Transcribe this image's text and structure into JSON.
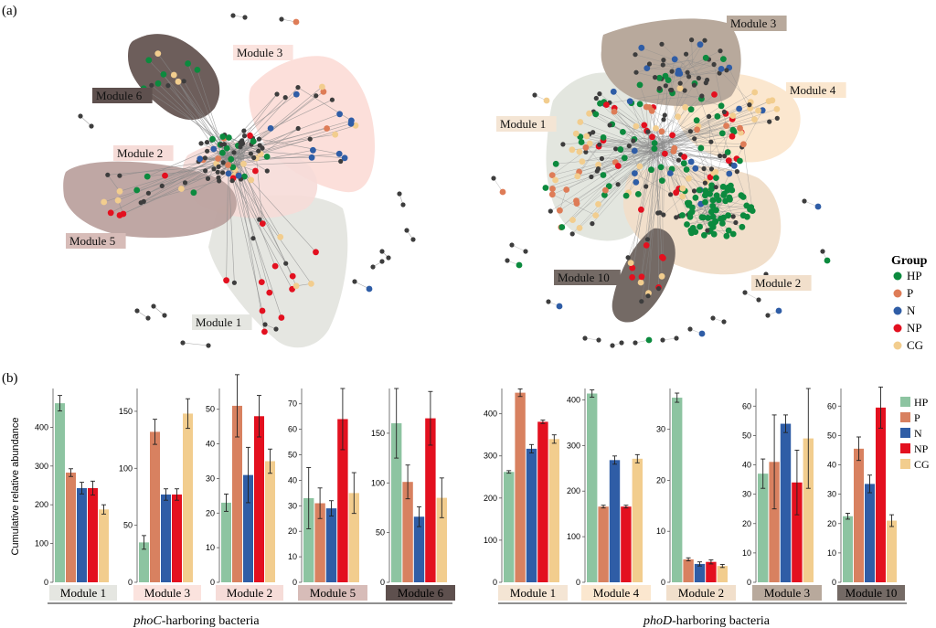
{
  "figure": {
    "panel_a_label": "(a)",
    "panel_b_label": "(b)"
  },
  "colors": {
    "HP": "#0c8a3e",
    "P": "#de7c57",
    "N": "#2f5da6",
    "NP": "#e3101f",
    "CG": "#f2cd8e",
    "gray": "#3d3d3d",
    "bar_HP": "#8dc4a1",
    "bar_P": "#d88160",
    "bar_N": "#2f5da6",
    "bar_NP": "#e3101f",
    "bar_CG": "#f2cd8e"
  },
  "network_left": {
    "modules": [
      {
        "label": "Module 1",
        "fill": "#e5e6e1",
        "label_bg": "#e5e6e1",
        "label_color": "#111111"
      },
      {
        "label": "Module 2",
        "fill": "#f6dcd8",
        "label_bg": "#f6dcd8",
        "label_color": "#111111"
      },
      {
        "label": "Module 3",
        "fill": "#fbd9d3",
        "label_bg": "#fbe3de",
        "label_color": "#111111"
      },
      {
        "label": "Module 5",
        "fill": "#bca29f",
        "label_bg": "#d7bcb8",
        "label_color": "#111111"
      },
      {
        "label": "Module 6",
        "fill": "#6d5e5b",
        "label_bg": "#5e504e",
        "label_color": "#111111"
      }
    ]
  },
  "network_right": {
    "modules": [
      {
        "label": "Module 1",
        "fill": "#e3e6df",
        "label_bg": "#f4e5d4",
        "label_color": "#111111"
      },
      {
        "label": "Module 2",
        "fill": "#f1dfcb",
        "label_bg": "#f1dfcb",
        "label_color": "#111111"
      },
      {
        "label": "Module 3",
        "fill": "#b8a99c",
        "label_bg": "#b8a99c",
        "label_color": "#111111"
      },
      {
        "label": "Module 4",
        "fill": "#fbe7cf",
        "label_bg": "#fbe7cf",
        "label_color": "#111111"
      },
      {
        "label": "Module 10",
        "fill": "#746a65",
        "label_bg": "#746a65",
        "label_color": "#111111"
      }
    ]
  },
  "legend_a": {
    "title": "Group",
    "items": [
      "HP",
      "P",
      "N",
      "NP",
      "CG"
    ]
  },
  "legend_b": {
    "items": [
      "HP",
      "P",
      "N",
      "NP",
      "CG"
    ]
  },
  "chart_data": [
    {
      "type": "bar",
      "group": "phoC-harboring bacteria",
      "module": "Module 1",
      "module_bg": "#e5e6e1",
      "ylabel": "Cumulative relative abundance",
      "ylim": [
        0,
        500
      ],
      "yticks": [
        0,
        100,
        200,
        300,
        400
      ],
      "categories": [
        "HP",
        "P",
        "N",
        "NP",
        "CG"
      ],
      "values": [
        462,
        283,
        243,
        243,
        188
      ],
      "errors": [
        20,
        10,
        15,
        18,
        12
      ]
    },
    {
      "type": "bar",
      "group": "phoC-harboring bacteria",
      "module": "Module 3",
      "module_bg": "#fbe3de",
      "ylim": [
        0,
        170
      ],
      "yticks": [
        0,
        50,
        100,
        150
      ],
      "categories": [
        "HP",
        "P",
        "N",
        "NP",
        "CG"
      ],
      "values": [
        35,
        132,
        77,
        77,
        148
      ],
      "errors": [
        6,
        11,
        5,
        5,
        13
      ]
    },
    {
      "type": "bar",
      "group": "phoC-harboring bacteria",
      "module": "Module 2",
      "module_bg": "#f6dcd8",
      "ylim": [
        0,
        56
      ],
      "yticks": [
        0,
        10,
        20,
        30,
        40,
        50
      ],
      "categories": [
        "HP",
        "P",
        "N",
        "NP",
        "CG"
      ],
      "values": [
        23,
        51,
        31,
        48,
        35
      ],
      "errors": [
        2.5,
        9,
        8,
        6,
        3.5
      ]
    },
    {
      "type": "bar",
      "group": "phoC-harboring bacteria",
      "module": "Module 5",
      "module_bg": "#d7bcb8",
      "ylim": [
        0,
        76
      ],
      "yticks": [
        0,
        10,
        20,
        30,
        40,
        50,
        60,
        70
      ],
      "categories": [
        "HP",
        "P",
        "N",
        "NP",
        "CG"
      ],
      "values": [
        33,
        31,
        29,
        64,
        35
      ],
      "errors": [
        12,
        6,
        3,
        12,
        8
      ]
    },
    {
      "type": "bar",
      "group": "phoC-harboring bacteria",
      "module": "Module 6",
      "module_bg": "#5e504e",
      "ylim": [
        0,
        195
      ],
      "yticks": [
        0,
        50,
        100,
        150
      ],
      "categories": [
        "HP",
        "P",
        "N",
        "NP",
        "CG"
      ],
      "values": [
        160,
        101,
        66,
        165,
        85
      ],
      "errors": [
        35,
        17,
        10,
        27,
        20
      ]
    },
    {
      "type": "bar",
      "group": "phoD-harboring bacteria",
      "module": "Module 1",
      "module_bg": "#f4e5d4",
      "ylim": [
        0,
        460
      ],
      "yticks": [
        0,
        100,
        200,
        300,
        400
      ],
      "categories": [
        "HP",
        "P",
        "N",
        "NP",
        "CG"
      ],
      "values": [
        262,
        450,
        317,
        381,
        340
      ],
      "errors": [
        3,
        9,
        10,
        4,
        10
      ]
    },
    {
      "type": "bar",
      "group": "phoD-harboring bacteria",
      "module": "Module 4",
      "module_bg": "#fbe7cf",
      "ylim": [
        0,
        425
      ],
      "yticks": [
        0,
        100,
        200,
        300,
        400
      ],
      "categories": [
        "HP",
        "P",
        "N",
        "NP",
        "CG"
      ],
      "values": [
        414,
        166,
        268,
        166,
        271
      ],
      "errors": [
        8,
        3,
        9,
        3,
        9
      ]
    },
    {
      "type": "bar",
      "group": "phoD-harboring bacteria",
      "module": "Module 2",
      "module_bg": "#f1dfcb",
      "ylim": [
        0,
        38
      ],
      "yticks": [
        0,
        10,
        20,
        30
      ],
      "categories": [
        "HP",
        "P",
        "N",
        "NP",
        "CG"
      ],
      "values": [
        36.2,
        4.5,
        3.6,
        4.0,
        3.2
      ],
      "errors": [
        0.9,
        0.3,
        0.4,
        0.4,
        0.3
      ]
    },
    {
      "type": "bar",
      "group": "phoD-harboring bacteria",
      "module": "Module 3",
      "module_bg": "#b8a99c",
      "ylim": [
        0,
        66
      ],
      "yticks": [
        0,
        10,
        20,
        30,
        40,
        50,
        60
      ],
      "categories": [
        "HP",
        "P",
        "N",
        "NP",
        "CG"
      ],
      "values": [
        37,
        41,
        54,
        34,
        49
      ],
      "errors": [
        5,
        16,
        3,
        11,
        17
      ]
    },
    {
      "type": "bar",
      "group": "phoD-harboring bacteria",
      "module": "Module 10",
      "module_bg": "#746a65",
      "ylim": [
        0,
        66
      ],
      "yticks": [
        0,
        10,
        20,
        30,
        40,
        50,
        60
      ],
      "categories": [
        "HP",
        "P",
        "N",
        "NP",
        "CG"
      ],
      "values": [
        22.5,
        45.5,
        33.5,
        59.5,
        21
      ],
      "errors": [
        1,
        4,
        3,
        7,
        2
      ]
    }
  ],
  "captions": {
    "left_italic": "phoC",
    "left_rest": "-harboring bacteria",
    "right_italic": "phoD",
    "right_rest": "-harboring bacteria"
  }
}
